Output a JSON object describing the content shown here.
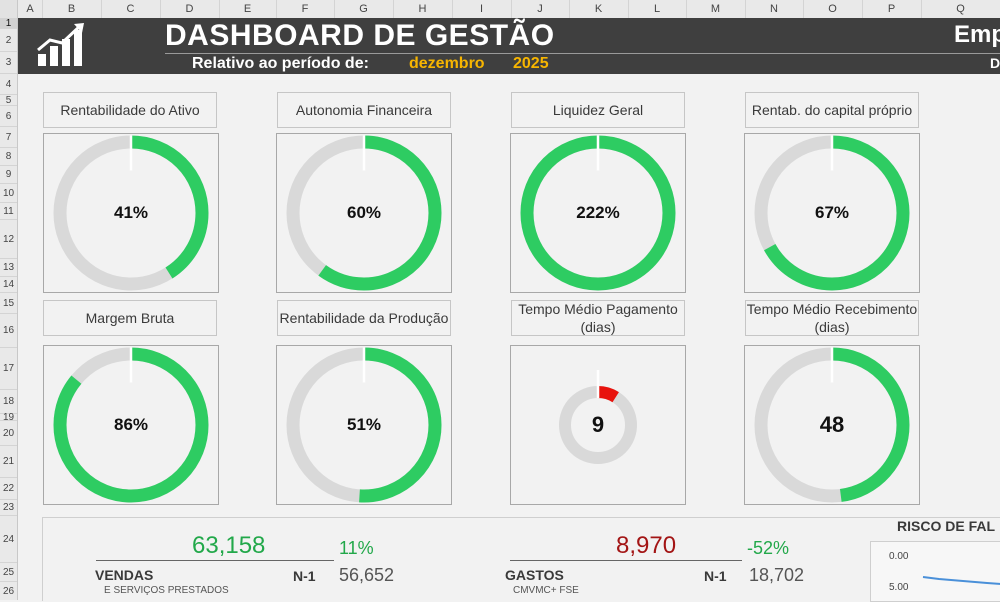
{
  "columns": [
    "A",
    "B",
    "C",
    "D",
    "E",
    "F",
    "G",
    "H",
    "I",
    "J",
    "K",
    "L",
    "M",
    "N",
    "O",
    "P",
    "Q"
  ],
  "rows": [
    "1",
    "2",
    "3",
    "4",
    "5",
    "6",
    "7",
    "8",
    "9",
    "10",
    "11",
    "12",
    "13",
    "14",
    "15",
    "16",
    "17",
    "18",
    "19",
    "20",
    "21",
    "22",
    "23",
    "24",
    "25",
    "26"
  ],
  "header": {
    "title": "DASHBOARD DE GESTÃO",
    "subtitle": "Relativo ao período de:",
    "month": "dezembro",
    "year": "2025",
    "company": "Emp",
    "company_sub": "D"
  },
  "kpis": [
    {
      "label": "Rentabilidade do Ativo",
      "value": "41%",
      "fill": 0.41
    },
    {
      "label": "Autonomia Financeira",
      "value": "60%",
      "fill": 0.6
    },
    {
      "label": "Liquidez Geral",
      "value": "222%",
      "fill": 1.0
    },
    {
      "label": "Rentab. do capital próprio",
      "value": "67%",
      "fill": 0.67
    },
    {
      "label": "Margem Bruta",
      "value": "86%",
      "fill": 0.86
    },
    {
      "label": "Rentabilidade da Produção",
      "value": "51%",
      "fill": 0.51
    },
    {
      "label": "Tempo Médio Pagamento (dias)",
      "value": "9",
      "fill": 0.09
    },
    {
      "label": "Tempo Médio Recebimento (dias)",
      "value": "48",
      "fill": 0.48
    }
  ],
  "colors": {
    "accent": "#2ecc62",
    "alert": "#e8130d",
    "track": "#d9d9d9",
    "band": "#3f3f3f",
    "period": "#f7b500",
    "positive_value": "#22a84a",
    "negative_value": "#a31515"
  },
  "summary": {
    "sales": {
      "value": "63,158",
      "change": "11%",
      "label": "VENDAS",
      "sublabel": "E SERVIÇOS PRESTADOS",
      "prev_label": "N-1",
      "prev_value": "56,652"
    },
    "expenses": {
      "value": "8,970",
      "change": "-52%",
      "label": "GASTOS",
      "sublabel": "CMVMC+ FSE",
      "prev_label": "N-1",
      "prev_value": "18,702"
    }
  },
  "risk": {
    "title": "RISCO DE FAL",
    "ticks": [
      "0.00",
      "5.00"
    ]
  },
  "icons": {
    "logo": "bar-chart-trend-icon"
  }
}
